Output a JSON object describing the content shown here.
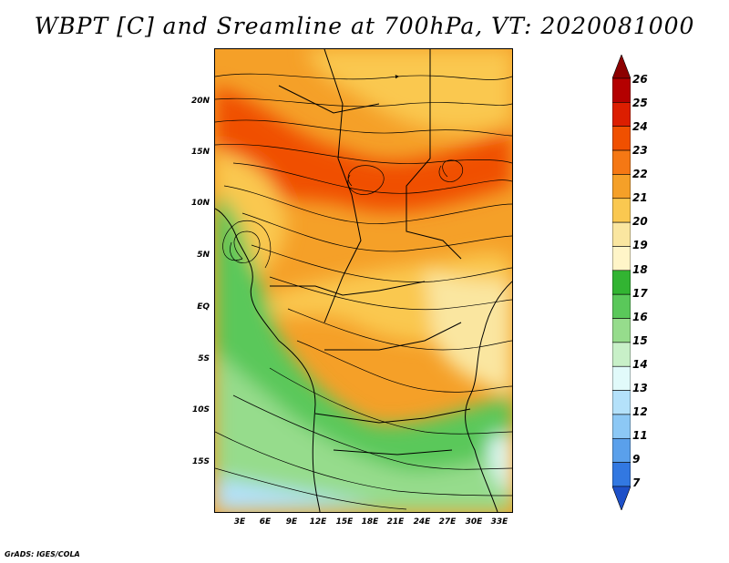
{
  "title": "WBPT [C] and Sreamline at 700hPa, VT: 2020081000",
  "footer": "GrADS: IGES/COLA",
  "lat_labels": [
    "20N",
    "15N",
    "10N",
    "5N",
    "EQ",
    "5S",
    "10S",
    "15S"
  ],
  "lon_labels": [
    "3E",
    "6E",
    "9E",
    "12E",
    "15E",
    "18E",
    "21E",
    "24E",
    "27E",
    "30E",
    "33E"
  ],
  "colorbar": {
    "levels": [
      "26",
      "25",
      "24",
      "23",
      "22",
      "21",
      "20",
      "19",
      "18",
      "17",
      "16",
      "15",
      "14",
      "13",
      "12",
      "11",
      "9",
      "7"
    ],
    "colors": [
      "#8c0000",
      "#b40000",
      "#dc1e00",
      "#f05000",
      "#f57814",
      "#f5a028",
      "#fac850",
      "#fae6a0",
      "#fff5c8",
      "#32b432",
      "#5ac85a",
      "#96dc8c",
      "#c8f0c8",
      "#e1fafa",
      "#b4e1fa",
      "#8cc8f5",
      "#5aa0eb",
      "#3278e1",
      "#1e50c8"
    ]
  },
  "colors": {
    "land_fill": "#f5a028",
    "coast": "#000000"
  }
}
